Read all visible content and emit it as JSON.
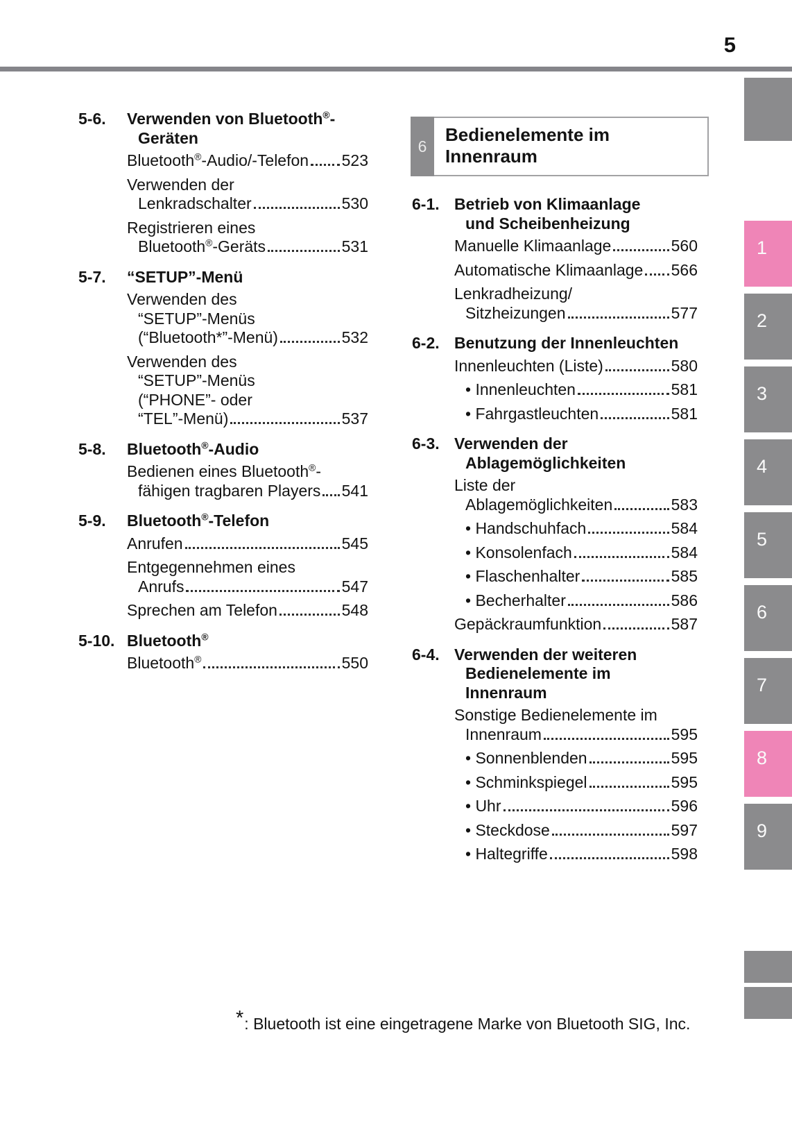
{
  "page": {
    "number": "5",
    "footnote_marker": "*",
    "footnote_text": ": Bluetooth ist eine eingetragene Marke von Bluetooth SIG, Inc."
  },
  "left_column": {
    "sections": [
      {
        "num": "5-6.",
        "title_lines": [
          "Verwenden von Bluetooth®-",
          "Geräten"
        ],
        "entries": [
          {
            "lines": [
              "Bluetooth®-Audio/-Telefon"
            ],
            "page": "523"
          },
          {
            "lines": [
              "Verwenden der",
              "Lenkradschalter"
            ],
            "page": "530"
          },
          {
            "lines": [
              "Registrieren eines",
              "Bluetooth®-Geräts"
            ],
            "page": "531"
          }
        ]
      },
      {
        "num": "5-7.",
        "title_lines": [
          "“SETUP”-Menü"
        ],
        "entries": [
          {
            "lines": [
              "Verwenden des",
              "“SETUP”-Menüs",
              "(“Bluetooth*”-Menü)"
            ],
            "page": "532"
          },
          {
            "lines": [
              "Verwenden des",
              "“SETUP”-Menüs",
              "(“PHONE”- oder",
              "“TEL”-Menü)"
            ],
            "page": "537"
          }
        ]
      },
      {
        "num": "5-8.",
        "title_lines": [
          "Bluetooth®-Audio"
        ],
        "entries": [
          {
            "lines": [
              "Bedienen eines Bluetooth®-",
              "fähigen tragbaren Players"
            ],
            "page": "541"
          }
        ]
      },
      {
        "num": "5-9.",
        "title_lines": [
          "Bluetooth®-Telefon"
        ],
        "entries": [
          {
            "lines": [
              "Anrufen"
            ],
            "page": "545"
          },
          {
            "lines": [
              "Entgegennehmen eines",
              "Anrufs"
            ],
            "page": "547"
          },
          {
            "lines": [
              "Sprechen am Telefon"
            ],
            "page": "548"
          }
        ]
      },
      {
        "num": "5-10.",
        "title_lines": [
          "Bluetooth®"
        ],
        "entries": [
          {
            "lines": [
              "Bluetooth®"
            ],
            "page": "550"
          }
        ]
      }
    ]
  },
  "right_column": {
    "chapter": {
      "num": "6",
      "title": "Bedienelemente im\nInnenraum"
    },
    "sections": [
      {
        "num": "6-1.",
        "title_lines": [
          "Betrieb von Klimaanlage",
          "und Scheibenheizung"
        ],
        "entries": [
          {
            "lines": [
              "Manuelle Klimaanlage"
            ],
            "page": "560"
          },
          {
            "lines": [
              "Automatische Klimaanlage"
            ],
            "page": "566"
          },
          {
            "lines": [
              "Lenkradheizung/",
              "Sitzheizungen"
            ],
            "page": "577"
          }
        ]
      },
      {
        "num": "6-2.",
        "title_lines": [
          "Benutzung der Innenleuchten"
        ],
        "entries": [
          {
            "lines": [
              "Innenleuchten (Liste)"
            ],
            "page": "580"
          },
          {
            "bullet": true,
            "lines": [
              "Innenleuchten"
            ],
            "page": "581"
          },
          {
            "bullet": true,
            "lines": [
              "Fahrgastleuchten"
            ],
            "page": "581"
          }
        ]
      },
      {
        "num": "6-3.",
        "title_lines": [
          "Verwenden der",
          "Ablagemöglichkeiten"
        ],
        "entries": [
          {
            "lines": [
              "Liste der",
              "Ablagemöglichkeiten"
            ],
            "page": "583"
          },
          {
            "bullet": true,
            "lines": [
              "Handschuhfach"
            ],
            "page": "584"
          },
          {
            "bullet": true,
            "lines": [
              "Konsolenfach"
            ],
            "page": "584"
          },
          {
            "bullet": true,
            "lines": [
              "Flaschenhalter"
            ],
            "page": "585"
          },
          {
            "bullet": true,
            "lines": [
              "Becherhalter"
            ],
            "page": "586"
          },
          {
            "lines": [
              "Gepäckraumfunktion"
            ],
            "page": "587"
          }
        ]
      },
      {
        "num": "6-4.",
        "title_lines": [
          "Verwenden der weiteren",
          "Bedienelemente im",
          "Innenraum"
        ],
        "entries": [
          {
            "lines": [
              "Sonstige Bedienelemente im",
              "Innenraum"
            ],
            "page": "595"
          },
          {
            "bullet": true,
            "lines": [
              "Sonnenblenden"
            ],
            "page": "595"
          },
          {
            "bullet": true,
            "lines": [
              "Schminkspiegel"
            ],
            "page": "595"
          },
          {
            "bullet": true,
            "lines": [
              "Uhr"
            ],
            "page": "596"
          },
          {
            "bullet": true,
            "lines": [
              "Steckdose"
            ],
            "page": "597"
          },
          {
            "bullet": true,
            "lines": [
              "Haltegriffe"
            ],
            "page": "598"
          }
        ]
      }
    ]
  },
  "side_tabs": {
    "unlabeled_top_box": true,
    "tabs": [
      {
        "label": "1",
        "active": true
      },
      {
        "label": "2",
        "active": false
      },
      {
        "label": "3",
        "active": false
      },
      {
        "label": "4",
        "active": false
      },
      {
        "label": "5",
        "active": false
      },
      {
        "label": "6",
        "active": false
      },
      {
        "label": "7",
        "active": false
      },
      {
        "label": "8",
        "active": true
      },
      {
        "label": "9",
        "active": false
      }
    ],
    "unlabeled_bottom_boxes": 2,
    "colors": {
      "tab_active": "#ef85b7",
      "tab_inactive": "#8b8b8d"
    }
  }
}
